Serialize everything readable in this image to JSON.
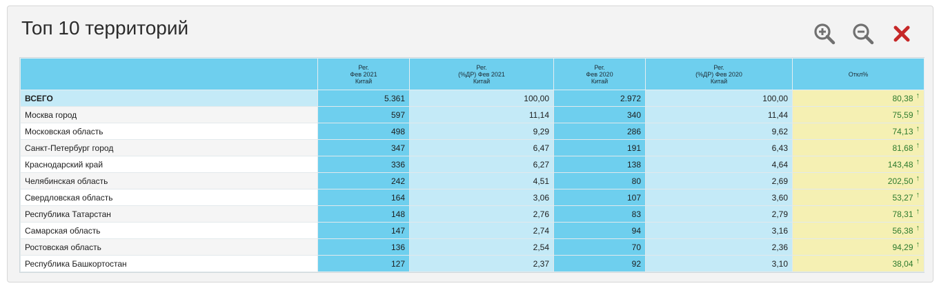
{
  "title": "Топ 10 территорий",
  "toolbar": {
    "zoom_in_icon": "zoom-in-icon",
    "zoom_out_icon": "zoom-out-icon",
    "close_icon": "close-icon",
    "close_color": "#c62828",
    "icon_color": "#707070"
  },
  "table": {
    "headers": [
      "",
      "Рег.\nФев 2021\nКитай",
      "Рег.\n(%ДР) Фев 2021\nКитай",
      "Рег.\nФев 2020\nКитай",
      "Рег.\n(%ДР) Фев 2020\nКитай",
      "Откл%"
    ],
    "total": {
      "name": "ВСЕГО",
      "v1": "5.361",
      "v2": "100,00",
      "v3": "2.972",
      "v4": "100,00",
      "v5": "80,38"
    },
    "rows": [
      {
        "name": "Москва город",
        "v1": "597",
        "v2": "11,14",
        "v3": "340",
        "v4": "11,44",
        "v5": "75,59"
      },
      {
        "name": "Московская область",
        "v1": "498",
        "v2": "9,29",
        "v3": "286",
        "v4": "9,62",
        "v5": "74,13"
      },
      {
        "name": "Санкт-Петербург город",
        "v1": "347",
        "v2": "6,47",
        "v3": "191",
        "v4": "6,43",
        "v5": "81,68"
      },
      {
        "name": "Краснодарский край",
        "v1": "336",
        "v2": "6,27",
        "v3": "138",
        "v4": "4,64",
        "v5": "143,48"
      },
      {
        "name": "Челябинская область",
        "v1": "242",
        "v2": "4,51",
        "v3": "80",
        "v4": "2,69",
        "v5": "202,50"
      },
      {
        "name": "Свердловская область",
        "v1": "164",
        "v2": "3,06",
        "v3": "107",
        "v4": "3,60",
        "v5": "53,27"
      },
      {
        "name": "Республика Татарстан",
        "v1": "148",
        "v2": "2,76",
        "v3": "83",
        "v4": "2,79",
        "v5": "78,31"
      },
      {
        "name": "Самарская область",
        "v1": "147",
        "v2": "2,74",
        "v3": "94",
        "v4": "3,16",
        "v5": "56,38"
      },
      {
        "name": "Ростовская область",
        "v1": "136",
        "v2": "2,54",
        "v3": "70",
        "v4": "2,36",
        "v5": "94,29"
      },
      {
        "name": "Республика Башкортостан",
        "v1": "127",
        "v2": "2,37",
        "v3": "92",
        "v4": "3,10",
        "v5": "38,04"
      }
    ],
    "arrow_glyph": "🠅",
    "colors": {
      "header_bg": "#6ecfee",
      "col_dark": "#6ecfee",
      "col_light": "#c4eaf7",
      "deviation_bg": "#f5f0b3",
      "up_arrow": "#2a7e2a"
    }
  }
}
